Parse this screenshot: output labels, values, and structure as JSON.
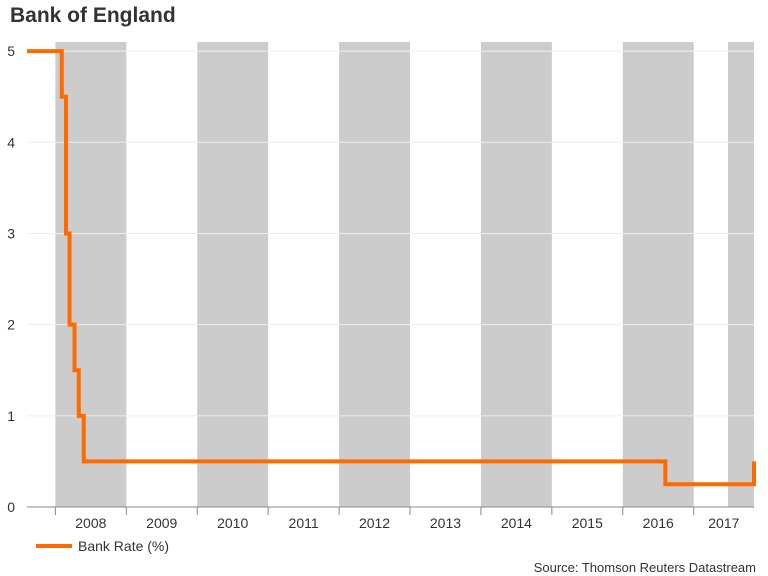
{
  "title": "Bank of England",
  "source": "Source: Thomson Reuters Datastream",
  "colors": {
    "series": "#ff6a00",
    "band": "#cccccc",
    "grid": "#eeeeee",
    "axis": "#888888",
    "text": "#333333"
  },
  "chart_data": {
    "type": "line",
    "title": "Bank of England",
    "xlabel": "",
    "ylabel": "",
    "xlim": [
      2007.6,
      2017.85
    ],
    "ylim": [
      0,
      5.1
    ],
    "yticks": [
      "0",
      "1",
      "2",
      "3",
      "4",
      "5"
    ],
    "xticks": [
      "2008",
      "2009",
      "2010",
      "2011",
      "2012",
      "2013",
      "2014",
      "2015",
      "2016",
      "2017"
    ],
    "grid": true,
    "legend_position": "bottom-left",
    "shaded_years": [
      2008,
      2010,
      2012,
      2014,
      2016
    ],
    "series": [
      {
        "name": "Bank Rate (%)",
        "step": true,
        "points": [
          [
            2007.6,
            5.0
          ],
          [
            2008.03,
            5.0
          ],
          [
            2008.09,
            4.5
          ],
          [
            2008.15,
            3.0
          ],
          [
            2008.2,
            2.0
          ],
          [
            2008.27,
            1.5
          ],
          [
            2008.33,
            1.0
          ],
          [
            2008.4,
            0.5
          ],
          [
            2016.6,
            0.25
          ],
          [
            2017.85,
            0.5
          ],
          [
            2017.85,
            0.5
          ]
        ]
      }
    ]
  }
}
